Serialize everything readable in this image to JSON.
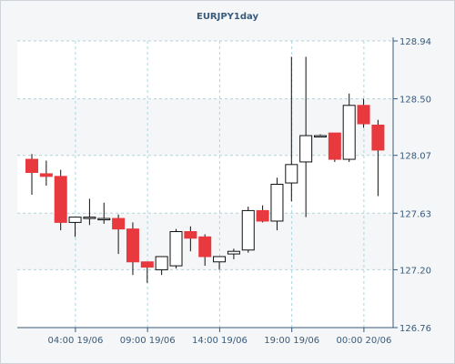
{
  "chart_data": {
    "type": "candlestick",
    "title": "EURJPY1day",
    "x_tick_labels": [
      "04:00 19/06",
      "09:00 19/06",
      "14:00 19/06",
      "19:00 19/06",
      "00:00 20/06"
    ],
    "y_tick_labels": [
      "128.94",
      "128.50",
      "128.07",
      "127.63",
      "127.20",
      "126.76"
    ],
    "ylim": [
      126.76,
      128.94
    ],
    "grid": true,
    "colors": {
      "up_fill": "#ffffff",
      "down_fill": "#e8393f",
      "body_stroke": "#111111",
      "wick": "#111111",
      "grid": "#a9d7e0",
      "axis": "#3a5a7a",
      "band": "#ffffff"
    },
    "candles": [
      {
        "open": 128.04,
        "high": 128.08,
        "low": 127.77,
        "close": 127.94
      },
      {
        "open": 127.93,
        "high": 128.03,
        "low": 127.84,
        "close": 127.91
      },
      {
        "open": 127.91,
        "high": 127.96,
        "low": 127.5,
        "close": 127.56
      },
      {
        "open": 127.56,
        "high": 127.6,
        "low": 127.45,
        "close": 127.6
      },
      {
        "open": 127.59,
        "high": 127.74,
        "low": 127.54,
        "close": 127.6
      },
      {
        "open": 127.59,
        "high": 127.71,
        "low": 127.55,
        "close": 127.59
      },
      {
        "open": 127.59,
        "high": 127.62,
        "low": 127.32,
        "close": 127.51
      },
      {
        "open": 127.51,
        "high": 127.56,
        "low": 127.16,
        "close": 127.26
      },
      {
        "open": 127.26,
        "high": 127.25,
        "low": 127.1,
        "close": 127.22
      },
      {
        "open": 127.2,
        "high": 127.3,
        "low": 127.16,
        "close": 127.3
      },
      {
        "open": 127.23,
        "high": 127.51,
        "low": 127.21,
        "close": 127.49
      },
      {
        "open": 127.49,
        "high": 127.53,
        "low": 127.34,
        "close": 127.44
      },
      {
        "open": 127.45,
        "high": 127.47,
        "low": 127.23,
        "close": 127.3
      },
      {
        "open": 127.26,
        "high": 127.3,
        "low": 127.2,
        "close": 127.3
      },
      {
        "open": 127.32,
        "high": 127.36,
        "low": 127.28,
        "close": 127.34
      },
      {
        "open": 127.35,
        "high": 127.68,
        "low": 127.33,
        "close": 127.65
      },
      {
        "open": 127.65,
        "high": 127.69,
        "low": 127.56,
        "close": 127.57
      },
      {
        "open": 127.57,
        "high": 127.9,
        "low": 127.5,
        "close": 127.85
      },
      {
        "open": 127.86,
        "high": 128.82,
        "low": 127.72,
        "close": 128.0
      },
      {
        "open": 128.02,
        "high": 128.82,
        "low": 127.6,
        "close": 128.22
      },
      {
        "open": 128.22,
        "high": 128.23,
        "low": 128.21,
        "close": 128.22
      },
      {
        "open": 128.24,
        "high": 128.24,
        "low": 128.02,
        "close": 128.04
      },
      {
        "open": 128.04,
        "high": 128.54,
        "low": 128.02,
        "close": 128.45
      },
      {
        "open": 128.45,
        "high": 128.5,
        "low": 128.28,
        "close": 128.31
      },
      {
        "open": 128.3,
        "high": 128.34,
        "low": 127.76,
        "close": 128.11
      }
    ]
  }
}
